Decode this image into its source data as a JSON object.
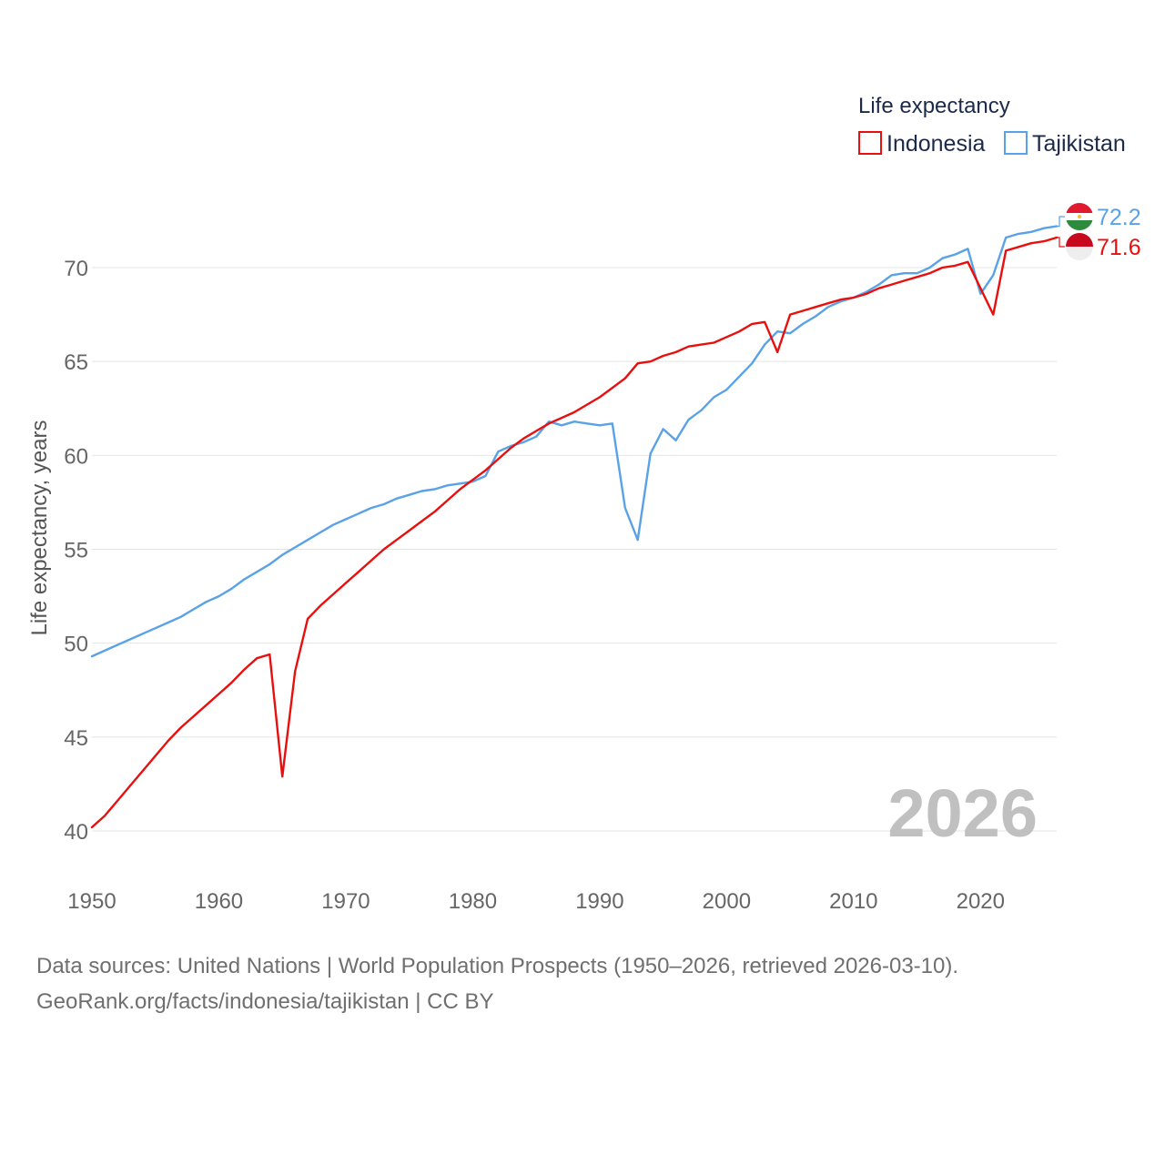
{
  "chart_data": {
    "type": "line",
    "title": "",
    "legend_title": "Life expectancy",
    "legend_position": "top-right",
    "xlabel": "",
    "ylabel": "Life expectancy, years",
    "xlim": [
      1950,
      2026
    ],
    "ylim": [
      38,
      73
    ],
    "x_ticks": [
      1950,
      1960,
      1970,
      1980,
      1990,
      2000,
      2010,
      2020
    ],
    "y_ticks": [
      40,
      45,
      50,
      55,
      60,
      65,
      70
    ],
    "grid": true,
    "year_label": "2026",
    "x": [
      1950,
      1951,
      1952,
      1953,
      1954,
      1955,
      1956,
      1957,
      1958,
      1959,
      1960,
      1961,
      1962,
      1963,
      1964,
      1965,
      1966,
      1967,
      1968,
      1969,
      1970,
      1971,
      1972,
      1973,
      1974,
      1975,
      1976,
      1977,
      1978,
      1979,
      1980,
      1981,
      1982,
      1983,
      1984,
      1985,
      1986,
      1987,
      1988,
      1989,
      1990,
      1991,
      1992,
      1993,
      1994,
      1995,
      1996,
      1997,
      1998,
      1999,
      2000,
      2001,
      2002,
      2003,
      2004,
      2005,
      2006,
      2007,
      2008,
      2009,
      2010,
      2011,
      2012,
      2013,
      2014,
      2015,
      2016,
      2017,
      2018,
      2019,
      2020,
      2021,
      2022,
      2023,
      2024,
      2025,
      2026
    ],
    "series": [
      {
        "name": "Indonesia",
        "color": "#e8100e",
        "end_label": "71.6",
        "values": [
          40.2,
          40.8,
          41.6,
          42.4,
          43.2,
          44.0,
          44.8,
          45.5,
          46.1,
          46.7,
          47.3,
          47.9,
          48.6,
          49.2,
          49.4,
          42.9,
          48.5,
          51.3,
          52.0,
          52.6,
          53.2,
          53.8,
          54.4,
          55.0,
          55.5,
          56.0,
          56.5,
          57.0,
          57.6,
          58.2,
          58.7,
          59.2,
          59.8,
          60.4,
          60.9,
          61.3,
          61.7,
          62.0,
          62.3,
          62.7,
          63.1,
          63.6,
          64.1,
          64.9,
          65.0,
          65.3,
          65.5,
          65.8,
          65.9,
          66.0,
          66.3,
          66.6,
          67.0,
          67.1,
          65.5,
          67.5,
          67.7,
          67.9,
          68.1,
          68.3,
          68.4,
          68.6,
          68.9,
          69.1,
          69.3,
          69.5,
          69.7,
          70.0,
          70.1,
          70.3,
          68.9,
          67.5,
          70.9,
          71.1,
          71.3,
          71.4,
          71.6
        ]
      },
      {
        "name": "Tajikistan",
        "color": "#5aa2e8",
        "end_label": "72.2",
        "values": [
          49.3,
          49.6,
          49.9,
          50.2,
          50.5,
          50.8,
          51.1,
          51.4,
          51.8,
          52.2,
          52.5,
          52.9,
          53.4,
          53.8,
          54.2,
          54.7,
          55.1,
          55.5,
          55.9,
          56.3,
          56.6,
          56.9,
          57.2,
          57.4,
          57.7,
          57.9,
          58.1,
          58.2,
          58.4,
          58.5,
          58.6,
          58.9,
          60.2,
          60.5,
          60.7,
          61.0,
          61.8,
          61.6,
          61.8,
          61.7,
          61.6,
          61.7,
          57.2,
          55.5,
          60.1,
          61.4,
          60.8,
          61.9,
          62.4,
          63.1,
          63.5,
          64.2,
          64.9,
          65.9,
          66.6,
          66.5,
          67.0,
          67.4,
          67.9,
          68.2,
          68.4,
          68.7,
          69.1,
          69.6,
          69.7,
          69.7,
          70.0,
          70.5,
          70.7,
          71.0,
          68.6,
          69.6,
          71.6,
          71.8,
          71.9,
          72.1,
          72.2
        ]
      }
    ]
  },
  "footer": {
    "sources": "Data sources: United Nations | World Population Prospects (1950–2026, retrieved 2026-03-10).",
    "credit": "GeoRank.org/facts/indonesia/tajikistan | CC BY"
  }
}
